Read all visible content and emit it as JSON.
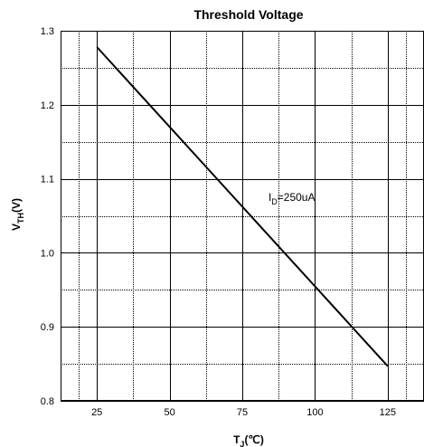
{
  "chart_data": {
    "type": "line",
    "title": "Threshold Voltage",
    "xlabel": "T_J(℃)",
    "xlabel_main": "T",
    "xlabel_sub": "J",
    "xlabel_tail": "(℃)",
    "ylabel": "V_TH(V)",
    "ylabel_main": "V",
    "ylabel_sub": "TH",
    "ylabel_tail": "(V)",
    "xlim": [
      12.5,
      137.5
    ],
    "ylim": [
      0.8,
      1.3
    ],
    "xticks": [
      25,
      50,
      75,
      100,
      125
    ],
    "xtick_labels": [
      "25",
      "50",
      "75",
      "100",
      "125"
    ],
    "yticks": [
      0.8,
      0.9,
      1.0,
      1.1,
      1.2,
      1.3
    ],
    "ytick_labels": [
      "0.8",
      "0.9",
      "1.0",
      "1.1",
      "1.2",
      "1.3"
    ],
    "grid": true,
    "series": [
      {
        "x": [
          25,
          125
        ],
        "y": [
          1.278,
          0.847
        ],
        "color": "#000000"
      }
    ],
    "annotations": [
      {
        "main": "I",
        "sub": "D",
        "tail": "=250uA",
        "x": 84,
        "y": 1.07
      }
    ]
  }
}
